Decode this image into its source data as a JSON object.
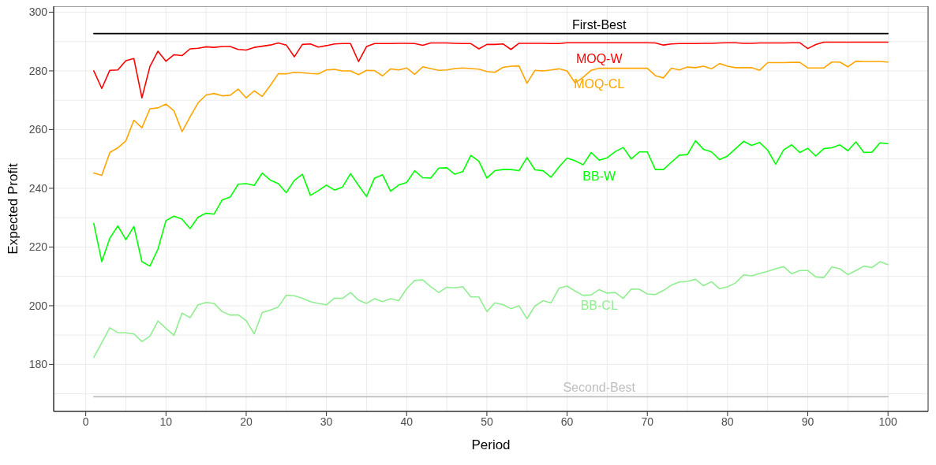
{
  "chart_data": {
    "type": "line",
    "xlabel": "Period",
    "ylabel": "Expected Profit",
    "xlim": [
      -4,
      105
    ],
    "ylim": [
      164,
      302
    ],
    "xticks": [
      0,
      10,
      20,
      30,
      40,
      50,
      60,
      70,
      80,
      90,
      100
    ],
    "yticks": [
      180,
      200,
      220,
      240,
      260,
      280,
      300
    ],
    "grid": true,
    "line_style": "solid",
    "x": [
      1,
      2,
      3,
      4,
      5,
      6,
      7,
      8,
      9,
      10,
      11,
      12,
      13,
      14,
      15,
      16,
      17,
      18,
      19,
      20,
      21,
      22,
      23,
      24,
      25,
      26,
      27,
      28,
      29,
      30,
      31,
      32,
      33,
      34,
      35,
      36,
      37,
      38,
      39,
      40,
      41,
      42,
      43,
      44,
      45,
      46,
      47,
      48,
      49,
      50,
      51,
      52,
      53,
      54,
      55,
      56,
      57,
      58,
      59,
      60,
      61,
      62,
      63,
      64,
      65,
      66,
      67,
      68,
      69,
      70,
      71,
      72,
      73,
      74,
      75,
      76,
      77,
      78,
      79,
      80,
      81,
      82,
      83,
      84,
      85,
      86,
      87,
      88,
      89,
      90,
      91,
      92,
      93,
      94,
      95,
      96,
      97,
      98,
      99,
      100
    ],
    "series": [
      {
        "name": "First-Best",
        "color": "#000000",
        "values": [
          292.7,
          292.7,
          292.7,
          292.7,
          292.7,
          292.7,
          292.7,
          292.7,
          292.7,
          292.7,
          292.7,
          292.7,
          292.7,
          292.7,
          292.7,
          292.7,
          292.7,
          292.7,
          292.7,
          292.7,
          292.7,
          292.7,
          292.7,
          292.7,
          292.7,
          292.7,
          292.7,
          292.7,
          292.7,
          292.7,
          292.7,
          292.7,
          292.7,
          292.7,
          292.7,
          292.7,
          292.7,
          292.7,
          292.7,
          292.7,
          292.7,
          292.7,
          292.7,
          292.7,
          292.7,
          292.7,
          292.7,
          292.7,
          292.7,
          292.7,
          292.7,
          292.7,
          292.7,
          292.7,
          292.7,
          292.7,
          292.7,
          292.7,
          292.7,
          292.7,
          292.7,
          292.7,
          292.7,
          292.7,
          292.7,
          292.7,
          292.7,
          292.7,
          292.7,
          292.7,
          292.7,
          292.7,
          292.7,
          292.7,
          292.7,
          292.7,
          292.7,
          292.7,
          292.7,
          292.7,
          292.7,
          292.7,
          292.7,
          292.7,
          292.7,
          292.7,
          292.7,
          292.7,
          292.7,
          292.7,
          292.7,
          292.7,
          292.7,
          292.7,
          292.7,
          292.7,
          292.7,
          292.7,
          292.7,
          292.7
        ]
      },
      {
        "name": "MOQ-W",
        "color": "#ff0000",
        "values": [
          280,
          274,
          280.2,
          280.3,
          283.5,
          284.2,
          270.8,
          281.5,
          286.7,
          283.3,
          285.5,
          285.2,
          287.5,
          287.7,
          288.2,
          288,
          288.3,
          288.3,
          287.3,
          287.1,
          288,
          288.4,
          288.8,
          289.5,
          288.8,
          284.8,
          289,
          289.2,
          288.1,
          288.6,
          289.2,
          289.3,
          289.3,
          283.2,
          288.3,
          289.3,
          289.3,
          289.3,
          289.4,
          289.4,
          289.3,
          288.7,
          289.5,
          289.5,
          289.5,
          289.4,
          289.3,
          289.3,
          287.5,
          289,
          289,
          289.2,
          287.3,
          289.4,
          289.4,
          289.4,
          289.4,
          289.3,
          289.3,
          289.6,
          289.6,
          289.6,
          289.6,
          289.6,
          289.6,
          289.6,
          289.6,
          289.6,
          289.6,
          289.6,
          289.5,
          288.8,
          289.2,
          289.3,
          289.3,
          289.3,
          289.4,
          289.4,
          289.5,
          289.6,
          289.6,
          289.4,
          289.4,
          289.5,
          289.5,
          289.5,
          289.5,
          289.6,
          289.6,
          287.6,
          289,
          289.8,
          289.8,
          289.8,
          289.8,
          289.8,
          289.8,
          289.8,
          289.8,
          289.8
        ]
      },
      {
        "name": "MOQ-CL",
        "color": "#ffa500",
        "values": [
          245.2,
          244.4,
          252.2,
          253.8,
          256.2,
          263.2,
          260.6,
          267.1,
          267.4,
          268.7,
          266.4,
          259.3,
          264.3,
          269.1,
          271.8,
          272.3,
          271.5,
          271.7,
          273.8,
          270.8,
          273.2,
          271.3,
          275,
          279,
          279,
          279.5,
          279.4,
          279.1,
          279,
          280.3,
          280.5,
          280,
          280,
          278.7,
          280.2,
          280.1,
          278.3,
          280.7,
          280.3,
          281,
          278.8,
          281.4,
          280.8,
          280.2,
          280.3,
          280.8,
          281,
          280.8,
          280.6,
          279.8,
          279.5,
          281.2,
          281.6,
          281.7,
          275.8,
          280.2,
          280,
          280.3,
          280.7,
          280,
          275.9,
          277.8,
          280.2,
          280.9,
          280.9,
          280.9,
          280.9,
          280.9,
          280.9,
          280.9,
          278.4,
          277.6,
          280.9,
          280.3,
          281.3,
          281.1,
          281.6,
          280.7,
          282.5,
          281.6,
          281.1,
          281.1,
          281.1,
          280.2,
          282.8,
          282.8,
          282.8,
          282.9,
          282.9,
          281,
          281,
          281,
          283,
          283,
          281.4,
          283.3,
          283.2,
          283.2,
          283.2,
          283
        ]
      },
      {
        "name": "BB-W",
        "color": "#00ff00",
        "values": [
          228,
          215,
          223,
          227.2,
          222.5,
          227,
          215,
          213.5,
          219.3,
          229,
          230.5,
          229.5,
          226.3,
          230.2,
          231.5,
          231.2,
          236,
          237,
          241.4,
          241.6,
          241,
          245.2,
          242.8,
          241.6,
          238.5,
          242.7,
          244.8,
          237.6,
          239.2,
          241.1,
          239.4,
          240.4,
          245,
          241,
          237.2,
          243.5,
          244.6,
          239,
          241.1,
          242,
          246,
          243.6,
          243.5,
          246.9,
          247,
          244.8,
          245.7,
          251.2,
          249.2,
          243.5,
          246,
          246.4,
          246.4,
          246,
          250.5,
          246.3,
          246,
          243.8,
          247.3,
          250.3,
          249.4,
          248,
          252.2,
          249.6,
          250.4,
          252.5,
          253.9,
          250,
          252.4,
          252.4,
          246.4,
          246.4,
          248.9,
          251.3,
          251.5,
          256.2,
          253.3,
          252.4,
          249.8,
          251,
          253.5,
          256,
          254.6,
          255.6,
          253,
          248.2,
          253.1,
          254.8,
          252.2,
          253.6,
          251,
          253.5,
          253.8,
          254.8,
          252.8,
          255.8,
          252.2,
          252.3,
          255.5,
          255.2
        ]
      },
      {
        "name": "BB-CL",
        "color": "#90ee90",
        "values": [
          182.4,
          187.4,
          192.5,
          190.8,
          190.8,
          190.4,
          187.8,
          189.6,
          194.8,
          192.3,
          189.9,
          197.5,
          195.9,
          200.3,
          201.1,
          200.8,
          198,
          196.8,
          196.9,
          194.9,
          190.4,
          197.7,
          198.5,
          199.6,
          203.6,
          203.4,
          202.5,
          201.4,
          200.8,
          200.3,
          202.6,
          202.5,
          204.5,
          201.9,
          200.8,
          202.4,
          201.4,
          202.4,
          201.7,
          205.8,
          208.6,
          208.8,
          206.5,
          204.5,
          206.3,
          206.1,
          206.5,
          203,
          203,
          198,
          201,
          200.4,
          199,
          200,
          195.6,
          199.9,
          201.7,
          201,
          206,
          206.7,
          205,
          203.5,
          203.7,
          205.5,
          204.3,
          204.5,
          202.5,
          205.7,
          205.6,
          204,
          203.8,
          205.2,
          207,
          208.1,
          208.3,
          209,
          206.8,
          208.2,
          205.8,
          206.4,
          207.8,
          210.5,
          210.2,
          211,
          211.7,
          212.6,
          213.3,
          210.9,
          212,
          212,
          209.8,
          209.6,
          213.2,
          212.6,
          210.6,
          212,
          213.5,
          213,
          215,
          214
        ]
      },
      {
        "name": "Second-Best",
        "color": "#bebebe",
        "values": [
          169,
          169,
          169,
          169,
          169,
          169,
          169,
          169,
          169,
          169,
          169,
          169,
          169,
          169,
          169,
          169,
          169,
          169,
          169,
          169,
          169,
          169,
          169,
          169,
          169,
          169,
          169,
          169,
          169,
          169,
          169,
          169,
          169,
          169,
          169,
          169,
          169,
          169,
          169,
          169,
          169,
          169,
          169,
          169,
          169,
          169,
          169,
          169,
          169,
          169,
          169,
          169,
          169,
          169,
          169,
          169,
          169,
          169,
          169,
          169,
          169,
          169,
          169,
          169,
          169,
          169,
          169,
          169,
          169,
          169,
          169,
          169,
          169,
          169,
          169,
          169,
          169,
          169,
          169,
          169,
          169,
          169,
          169,
          169,
          169,
          169,
          169,
          169,
          169,
          169,
          169,
          169,
          169,
          169,
          169,
          169,
          169,
          169,
          169,
          169
        ]
      }
    ]
  }
}
